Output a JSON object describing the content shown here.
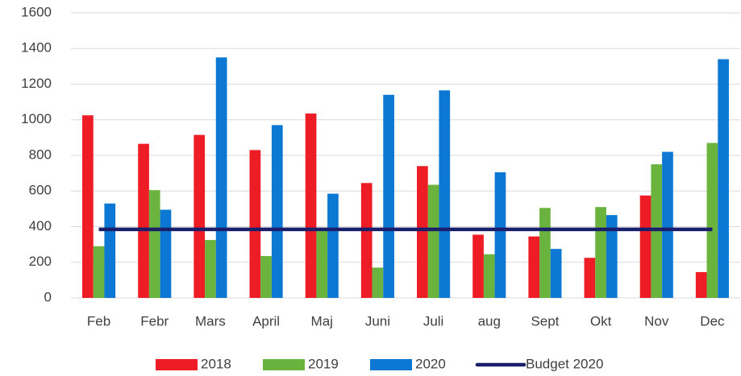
{
  "chart_data": {
    "type": "bar",
    "categories": [
      "Feb",
      "Febr",
      "Mars",
      "April",
      "Maj",
      "Juni",
      "Juli",
      "aug",
      "Sept",
      "Okt",
      "Nov",
      "Dec"
    ],
    "series": [
      {
        "name": "2018",
        "color": "#ee1c25",
        "values": [
          1025,
          865,
          915,
          830,
          1035,
          645,
          740,
          355,
          345,
          225,
          575,
          145
        ]
      },
      {
        "name": "2019",
        "color": "#6ab33e",
        "values": [
          290,
          605,
          325,
          235,
          375,
          170,
          635,
          245,
          505,
          510,
          750,
          870
        ]
      },
      {
        "name": "2020",
        "color": "#0d78d3",
        "values": [
          530,
          495,
          1350,
          970,
          585,
          1140,
          1165,
          705,
          275,
          465,
          820,
          1340
        ]
      },
      {
        "name": "Budget 2020",
        "type": "line",
        "color": "#1a1f6b",
        "values": [
          385,
          385,
          385,
          385,
          385,
          385,
          385,
          385,
          385,
          385,
          385,
          385
        ]
      }
    ],
    "ylim": [
      0,
      1600
    ],
    "yticks": [
      0,
      200,
      400,
      600,
      800,
      1000,
      1200,
      1400,
      1600
    ],
    "grid": true,
    "legend": "bottom"
  }
}
